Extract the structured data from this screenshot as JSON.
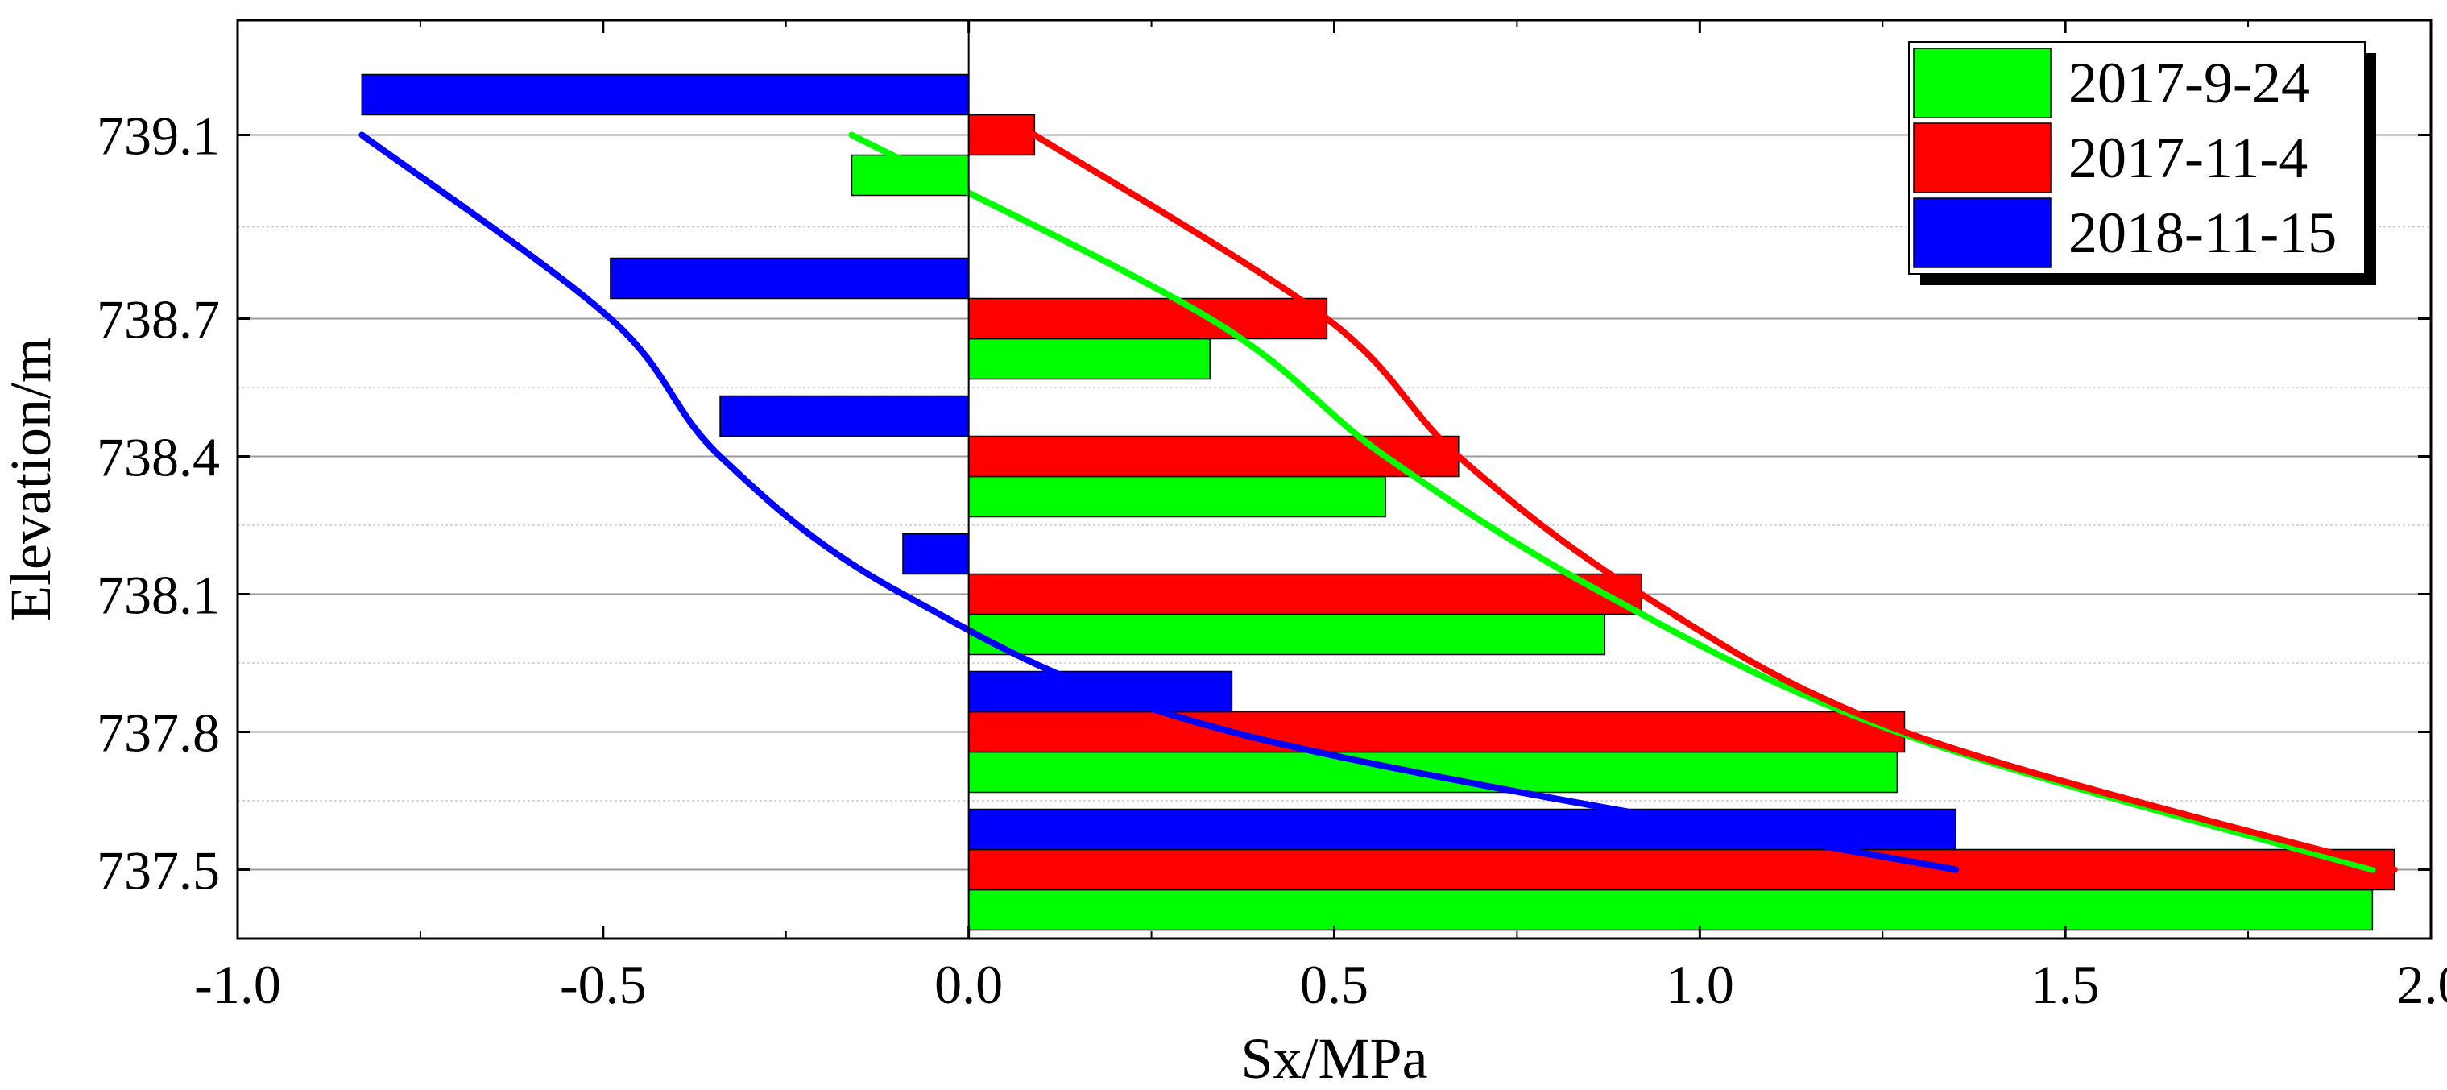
{
  "chart_data": {
    "type": "bar",
    "orientation": "horizontal",
    "title": "",
    "xlabel": "Sx/MPa",
    "ylabel": "Elevation/m",
    "xlim": [
      -1.0,
      2.0
    ],
    "ylim": [
      737.35,
      739.35
    ],
    "x_ticks": [
      -1.0,
      -0.5,
      0.0,
      0.5,
      1.0,
      1.5,
      2.0
    ],
    "x_tick_labels": [
      "-1.0",
      "-0.5",
      "0.0",
      "0.5",
      "1.0",
      "1.5",
      "2.0"
    ],
    "y_ticks": [
      737.5,
      737.8,
      738.1,
      738.4,
      738.7,
      739.1
    ],
    "y_tick_labels": [
      "737.5",
      "737.8",
      "738.1",
      "738.4",
      "738.7",
      "739.1"
    ],
    "grid": true,
    "legend_position": "top-right",
    "series": [
      {
        "name": "2017-9-24",
        "color": "#00ff00",
        "bars": [
          {
            "elevation": 737.5,
            "value": 1.92
          },
          {
            "elevation": 737.8,
            "value": 1.27
          },
          {
            "elevation": 738.1,
            "value": 0.87
          },
          {
            "elevation": 738.4,
            "value": 0.57
          },
          {
            "elevation": 738.7,
            "value": 0.33
          },
          {
            "elevation": 739.1,
            "value": -0.16
          }
        ],
        "trend_line": [
          {
            "value": 1.92,
            "elevation": 737.5
          },
          {
            "value": 1.27,
            "elevation": 737.8
          },
          {
            "value": 0.87,
            "elevation": 738.1
          },
          {
            "value": 0.57,
            "elevation": 738.4
          },
          {
            "value": 0.33,
            "elevation": 738.7
          },
          {
            "value": -0.16,
            "elevation": 739.1
          }
        ]
      },
      {
        "name": "2017-11-4",
        "color": "#ff0000",
        "bars": [
          {
            "elevation": 737.5,
            "value": 1.95
          },
          {
            "elevation": 737.8,
            "value": 1.28
          },
          {
            "elevation": 738.1,
            "value": 0.92
          },
          {
            "elevation": 738.4,
            "value": 0.67
          },
          {
            "elevation": 738.7,
            "value": 0.49
          },
          {
            "elevation": 739.1,
            "value": 0.09
          }
        ],
        "trend_line": [
          {
            "value": 1.95,
            "elevation": 737.5
          },
          {
            "value": 1.28,
            "elevation": 737.8
          },
          {
            "value": 0.92,
            "elevation": 738.1
          },
          {
            "value": 0.67,
            "elevation": 738.4
          },
          {
            "value": 0.49,
            "elevation": 738.7
          },
          {
            "value": 0.09,
            "elevation": 739.1
          }
        ]
      },
      {
        "name": "2018-11-15",
        "color": "#0000ff",
        "bars": [
          {
            "elevation": 737.5,
            "value": 1.35
          },
          {
            "elevation": 737.8,
            "value": 0.36
          },
          {
            "elevation": 738.1,
            "value": -0.09
          },
          {
            "elevation": 738.4,
            "value": -0.34
          },
          {
            "elevation": 738.7,
            "value": -0.49
          },
          {
            "elevation": 739.1,
            "value": -0.83
          }
        ],
        "trend_line": [
          {
            "value": 1.35,
            "elevation": 737.5
          },
          {
            "value": 0.36,
            "elevation": 737.8
          },
          {
            "value": -0.09,
            "elevation": 738.1
          },
          {
            "value": -0.34,
            "elevation": 738.4
          },
          {
            "value": -0.49,
            "elevation": 738.7
          },
          {
            "value": -0.83,
            "elevation": 739.1
          }
        ]
      }
    ]
  }
}
